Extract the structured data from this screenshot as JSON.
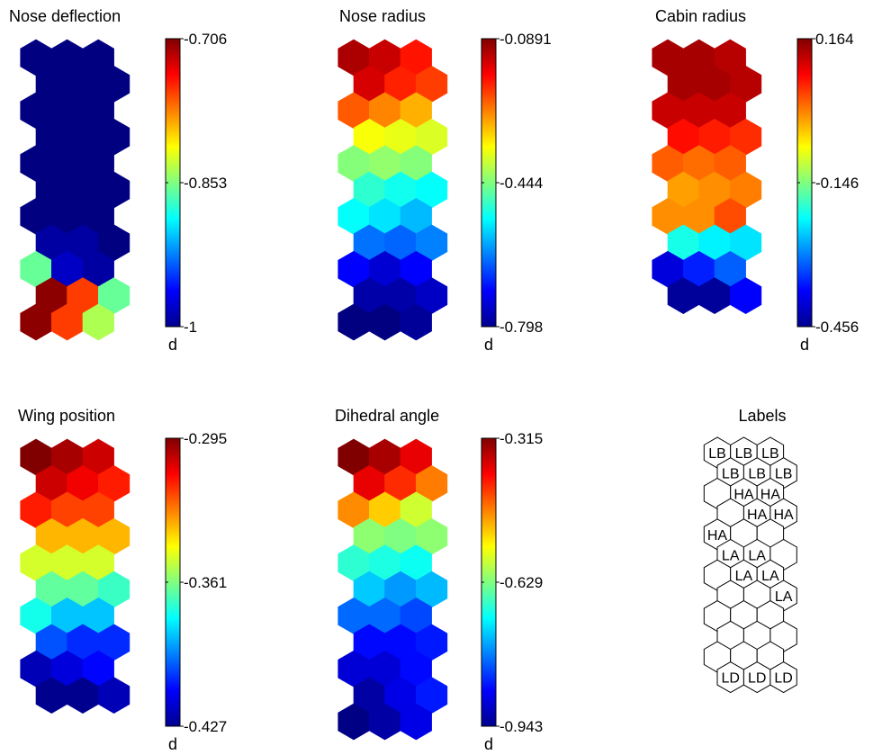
{
  "chart_data": [
    {
      "type": "heatmap",
      "title": "Nose deflection",
      "colorbar": {
        "ticks": [
          -0.706,
          -0.853,
          -1
        ],
        "unit": "d",
        "range": [
          -1,
          -0.706
        ]
      },
      "grid": {
        "cols": 3,
        "rows": 12,
        "hex": true,
        "odd_rows_offset": "right"
      },
      "values": [
        [
          -1,
          -1,
          -1
        ],
        [
          -1,
          -1,
          -1
        ],
        [
          -1,
          -1,
          -1
        ],
        [
          -1,
          -1,
          -1
        ],
        [
          -1,
          -1,
          -1
        ],
        [
          -1,
          -1,
          -1
        ],
        [
          -1,
          -1,
          -1
        ],
        [
          -0.99,
          -0.99,
          -1
        ],
        [
          -0.86,
          -0.98,
          -0.99
        ],
        [
          -0.71,
          -0.76,
          -0.86
        ],
        [
          -0.71,
          -0.76,
          -0.84
        ]
      ]
    },
    {
      "type": "heatmap",
      "title": "Nose radius",
      "colorbar": {
        "ticks": [
          -0.0891,
          -0.444,
          -0.798
        ],
        "unit": "d",
        "range": [
          -0.798,
          -0.0891
        ]
      },
      "grid": {
        "cols": 3,
        "rows": 12,
        "hex": true,
        "odd_rows_offset": "right"
      },
      "values": [
        [
          -0.12,
          -0.14,
          -0.19
        ],
        [
          -0.15,
          -0.2,
          -0.22
        ],
        [
          -0.24,
          -0.27,
          -0.3
        ],
        [
          -0.36,
          -0.37,
          -0.38
        ],
        [
          -0.44,
          -0.43,
          -0.44
        ],
        [
          -0.5,
          -0.52,
          -0.53
        ],
        [
          -0.53,
          -0.55,
          -0.58
        ],
        [
          -0.63,
          -0.64,
          -0.62
        ],
        [
          -0.71,
          -0.74,
          -0.71
        ],
        [
          -0.77,
          -0.77,
          -0.75
        ],
        [
          -0.8,
          -0.8,
          -0.78
        ]
      ]
    },
    {
      "type": "heatmap",
      "title": "Cabin radius",
      "colorbar": {
        "ticks": [
          0.164,
          -0.146,
          -0.456
        ],
        "unit": "d",
        "range": [
          -0.456,
          0.164
        ]
      },
      "grid": {
        "cols": 3,
        "rows": 12,
        "hex": true,
        "odd_rows_offset": "right"
      },
      "values": [
        [
          0.14,
          0.14,
          0.13
        ],
        [
          0.14,
          0.14,
          0.13
        ],
        [
          0.12,
          0.12,
          0.12
        ],
        [
          0.08,
          0.07,
          0.06
        ],
        [
          0.03,
          0.02,
          0.03
        ],
        [
          -0.01,
          0.0,
          0.01
        ],
        [
          0.0,
          0.0,
          0.04
        ],
        [
          -0.21,
          -0.23,
          -0.24
        ],
        [
          -0.4,
          -0.36,
          -0.32
        ],
        [
          -0.44,
          -0.44,
          -0.38
        ]
      ]
    },
    {
      "type": "heatmap",
      "title": "Wing position",
      "colorbar": {
        "ticks": [
          -0.295,
          -0.361,
          -0.427
        ],
        "unit": "d",
        "range": [
          -0.427,
          -0.295
        ]
      },
      "grid": {
        "cols": 3,
        "rows": 12,
        "hex": true,
        "odd_rows_offset": "right"
      },
      "values": [
        [
          -0.295,
          -0.3,
          -0.305
        ],
        [
          -0.305,
          -0.31,
          -0.315
        ],
        [
          -0.315,
          -0.32,
          -0.32
        ],
        [
          -0.335,
          -0.335,
          -0.335
        ],
        [
          -0.35,
          -0.35,
          -0.35
        ],
        [
          -0.365,
          -0.365,
          -0.37
        ],
        [
          -0.375,
          -0.385,
          -0.385
        ],
        [
          -0.4,
          -0.405,
          -0.405
        ],
        [
          -0.42,
          -0.415,
          -0.41
        ],
        [
          -0.425,
          -0.425,
          -0.42
        ]
      ]
    },
    {
      "type": "heatmap",
      "title": "Dihedral angle",
      "colorbar": {
        "ticks": [
          -0.315,
          -0.629,
          -0.943
        ],
        "unit": "d",
        "range": [
          -0.943,
          -0.315
        ]
      },
      "grid": {
        "cols": 3,
        "rows": 12,
        "hex": true,
        "odd_rows_offset": "right"
      },
      "values": [
        [
          -0.315,
          -0.34,
          -0.38
        ],
        [
          -0.38,
          -0.42,
          -0.47
        ],
        [
          -0.48,
          -0.52,
          -0.58
        ],
        [
          -0.62,
          -0.63,
          -0.62
        ],
        [
          -0.68,
          -0.69,
          -0.7
        ],
        [
          -0.74,
          -0.77,
          -0.75
        ],
        [
          -0.8,
          -0.8,
          -0.82
        ],
        [
          -0.86,
          -0.86,
          -0.85
        ],
        [
          -0.89,
          -0.89,
          -0.86
        ],
        [
          -0.92,
          -0.88,
          -0.85
        ],
        [
          -0.94,
          -0.92,
          -0.88
        ]
      ]
    },
    {
      "type": "table",
      "title": "Labels",
      "grid": {
        "cols": 3,
        "rows": 12,
        "hex": true,
        "odd_rows_offset": "right"
      },
      "labels": [
        [
          "LB",
          "LB",
          "LB"
        ],
        [
          "LB",
          "LB",
          "LB"
        ],
        [
          "",
          "HA",
          "HA"
        ],
        [
          "",
          "HA",
          "HA"
        ],
        [
          "HA",
          "",
          ""
        ],
        [
          "LA",
          "LA",
          ""
        ],
        [
          "",
          "LA",
          "LA"
        ],
        [
          "",
          "",
          "LA"
        ],
        [
          "",
          "",
          ""
        ],
        [
          "LD",
          "LD",
          "LD"
        ]
      ]
    }
  ],
  "colormap": "jet"
}
